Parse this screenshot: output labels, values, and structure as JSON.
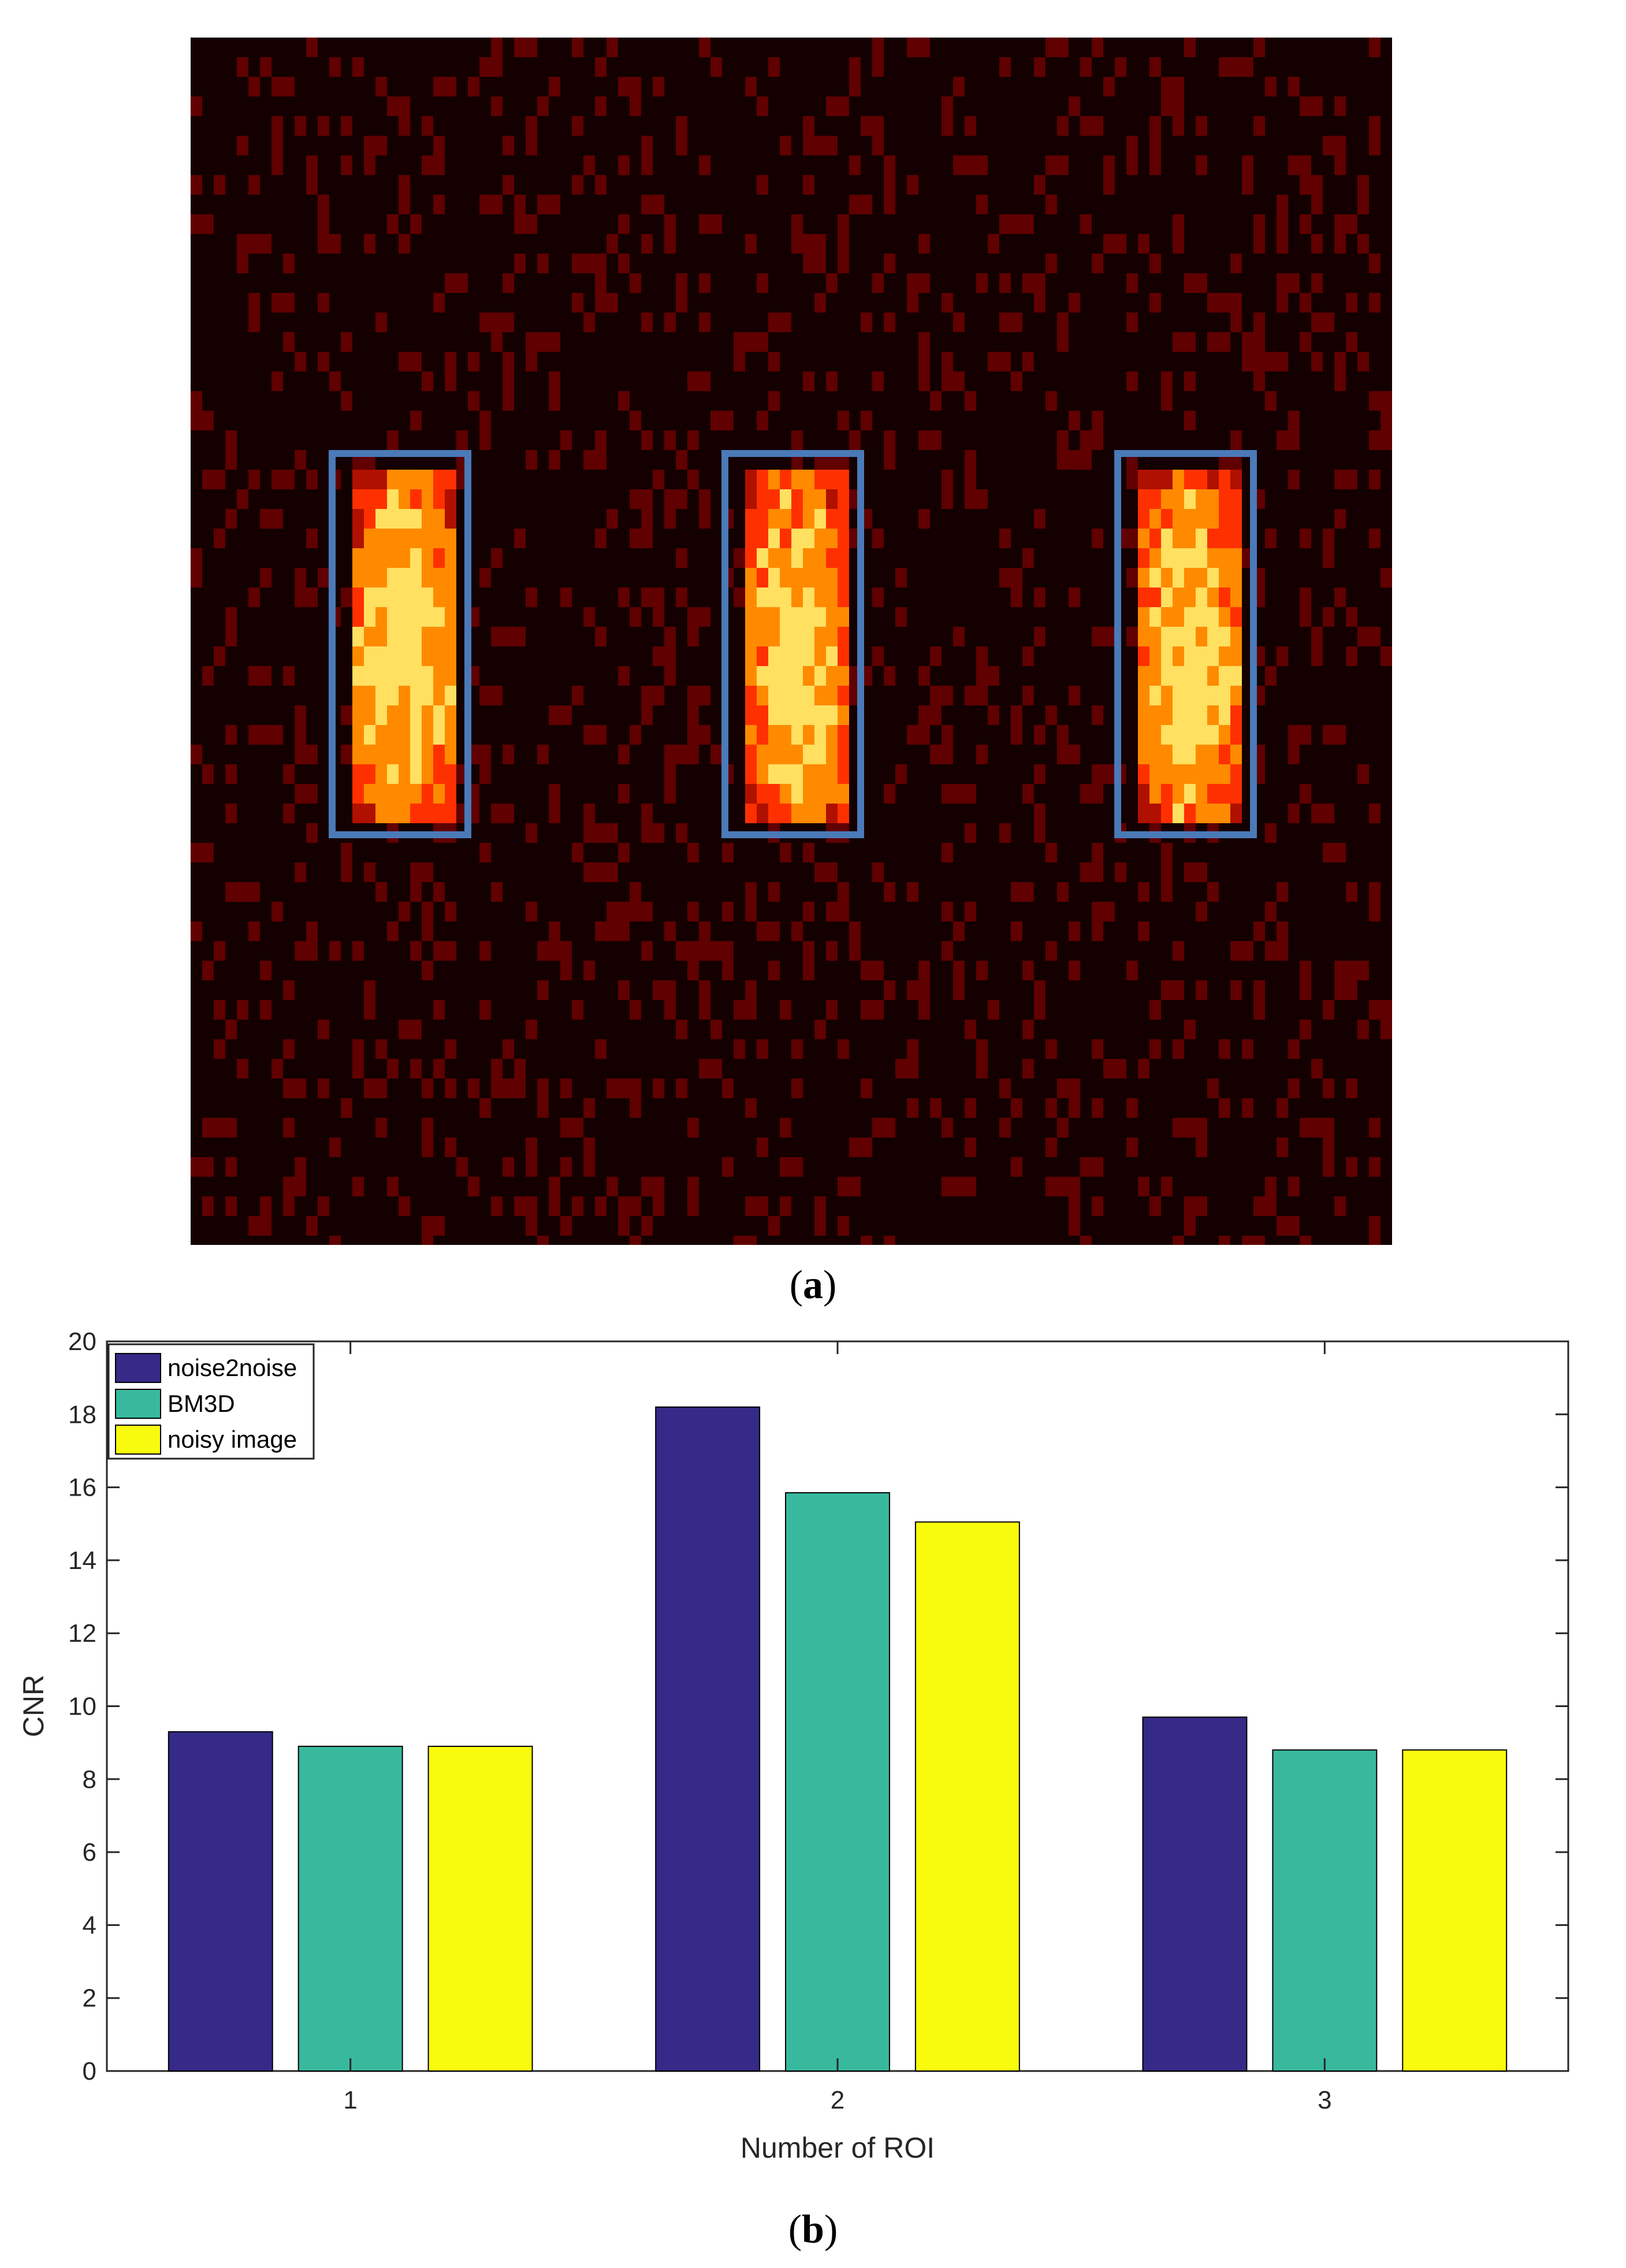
{
  "captions": {
    "a_letter": "a",
    "b_letter": "b"
  },
  "heatmap": {
    "roi_count": 3,
    "roi_box_color": "#4a7ab8",
    "colormap": [
      "#120000",
      "#600000",
      "#b01000",
      "#ff3000",
      "#ff8a00",
      "#ffe060",
      "#ffffff"
    ]
  },
  "chart_data": {
    "type": "bar",
    "categories": [
      "1",
      "2",
      "3"
    ],
    "series": [
      {
        "name": "noise2noise",
        "values": [
          9.3,
          18.2,
          9.7
        ],
        "color": "#352a87"
      },
      {
        "name": "BM3D",
        "values": [
          8.9,
          15.85,
          8.8
        ],
        "color": "#38b99e"
      },
      {
        "name": "noisy image",
        "values": [
          8.9,
          15.05,
          8.8
        ],
        "color": "#f9fb0e"
      }
    ],
    "xlabel": "Number of ROI",
    "ylabel": "CNR",
    "ylim": [
      0,
      20
    ],
    "yticks": [
      0,
      2,
      4,
      6,
      8,
      10,
      12,
      14,
      16,
      18,
      20
    ],
    "legend_position": "top-left",
    "grid": false
  }
}
